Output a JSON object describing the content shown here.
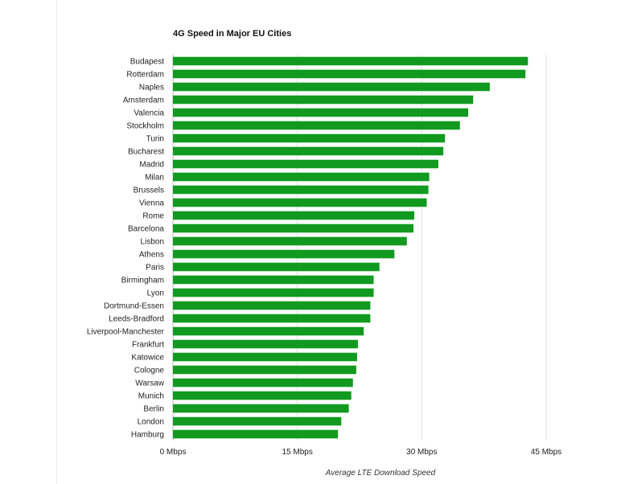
{
  "chart_data": {
    "type": "bar",
    "orientation": "horizontal",
    "title": "4G Speed in Major EU Cities",
    "xlabel": "Average LTE Download Speed",
    "ylabel": "",
    "xlim": [
      0,
      45
    ],
    "xticks": [
      0,
      15,
      30,
      45
    ],
    "xtick_labels": [
      "0 Mbps",
      "15 Mbps",
      "30 Mbps",
      "45 Mbps"
    ],
    "grid": true,
    "bar_color": "#119a1f",
    "categories": [
      "Budapest",
      "Rotterdam",
      "Naples",
      "Amsterdam",
      "Valencia",
      "Stockholm",
      "Turin",
      "Bucharest",
      "Madrid",
      "Milan",
      "Brussels",
      "Vienna",
      "Rome",
      "Barcelona",
      "Lisbon",
      "Athens",
      "Paris",
      "Birmingham",
      "Lyon",
      "Dortmund-Essen",
      "Leeds-Bradford",
      "Liverpool-Manchester",
      "Frankfurt",
      "Katowice",
      "Cologne",
      "Warsaw",
      "Munich",
      "Berlin",
      "London",
      "Hamburg"
    ],
    "values": [
      42.8,
      42.5,
      38.2,
      36.2,
      35.6,
      34.6,
      32.8,
      32.6,
      32.0,
      30.9,
      30.8,
      30.6,
      29.1,
      29.0,
      28.2,
      26.7,
      24.9,
      24.2,
      24.2,
      23.8,
      23.8,
      23.0,
      22.3,
      22.2,
      22.1,
      21.7,
      21.5,
      21.2,
      20.3,
      19.9
    ]
  }
}
